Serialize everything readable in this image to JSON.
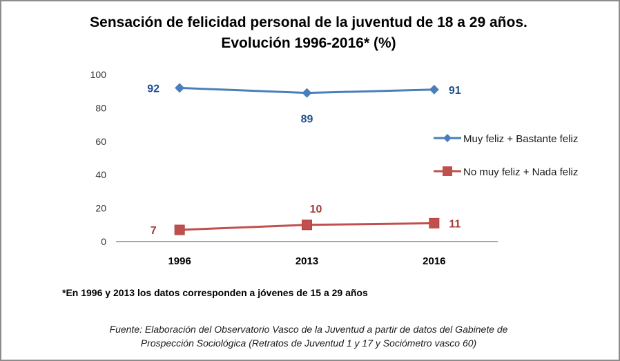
{
  "chart_data": {
    "type": "line",
    "title": "Sensación de felicidad personal de la juventud de 18 a 29 años.",
    "subtitle": "Evolución 1996-2016* (%)",
    "categories": [
      "1996",
      "2013",
      "2016"
    ],
    "series": [
      {
        "name": "Muy feliz + Bastante feliz",
        "values": [
          92,
          89,
          91
        ],
        "color": "#4a7ebb",
        "label_color": "#1f4e8c",
        "marker": "diamond"
      },
      {
        "name": "No muy feliz + Nada feliz",
        "values": [
          7,
          10,
          11
        ],
        "color": "#c0504d",
        "label_color": "#a33a37",
        "marker": "square"
      }
    ],
    "yticks": [
      0,
      20,
      40,
      60,
      80,
      100
    ],
    "ylim": [
      0,
      100
    ],
    "xlabel": "",
    "ylabel": "",
    "grid": false,
    "legend_position": "right"
  },
  "footnote": "*En 1996 y 2013 los datos corresponden a jóvenes de 15 a 29 años",
  "source_line1": "Fuente: Elaboración del Observatorio Vasco de la Juventud a partir de datos del Gabinete de",
  "source_line2": "Prospección Sociológica (Retratos de Juventud 1 y 17 y Sociómetro vasco 60)"
}
